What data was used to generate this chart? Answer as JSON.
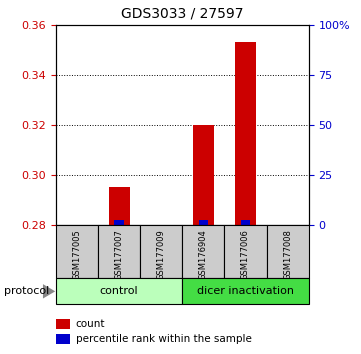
{
  "title": "GDS3033 / 27597",
  "samples": [
    "GSM177005",
    "GSM177007",
    "GSM177009",
    "GSM176904",
    "GSM177006",
    "GSM177008"
  ],
  "red_values": [
    0.28,
    0.295,
    0.28,
    0.32,
    0.353,
    0.28
  ],
  "blue_values": [
    0.0,
    2.5,
    0.0,
    2.5,
    2.5,
    0.0
  ],
  "ymin": 0.28,
  "ymax": 0.36,
  "y_ticks_left": [
    0.28,
    0.3,
    0.32,
    0.34,
    0.36
  ],
  "y_ticks_right": [
    0,
    25,
    50,
    75,
    100
  ],
  "y_right_labels": [
    "0",
    "25",
    "50",
    "75",
    "100%"
  ],
  "left_color": "#cc0000",
  "right_color": "#0000cc",
  "groups": [
    {
      "label": "control",
      "start": 0,
      "end": 3,
      "color": "#bbffbb"
    },
    {
      "label": "dicer inactivation",
      "start": 3,
      "end": 6,
      "color": "#44dd44"
    }
  ],
  "protocol_label": "protocol",
  "legend_items": [
    {
      "color": "#cc0000",
      "label": "count"
    },
    {
      "color": "#0000cc",
      "label": "percentile rank within the sample"
    }
  ],
  "background_color": "#ffffff",
  "sample_box_color": "#cccccc"
}
